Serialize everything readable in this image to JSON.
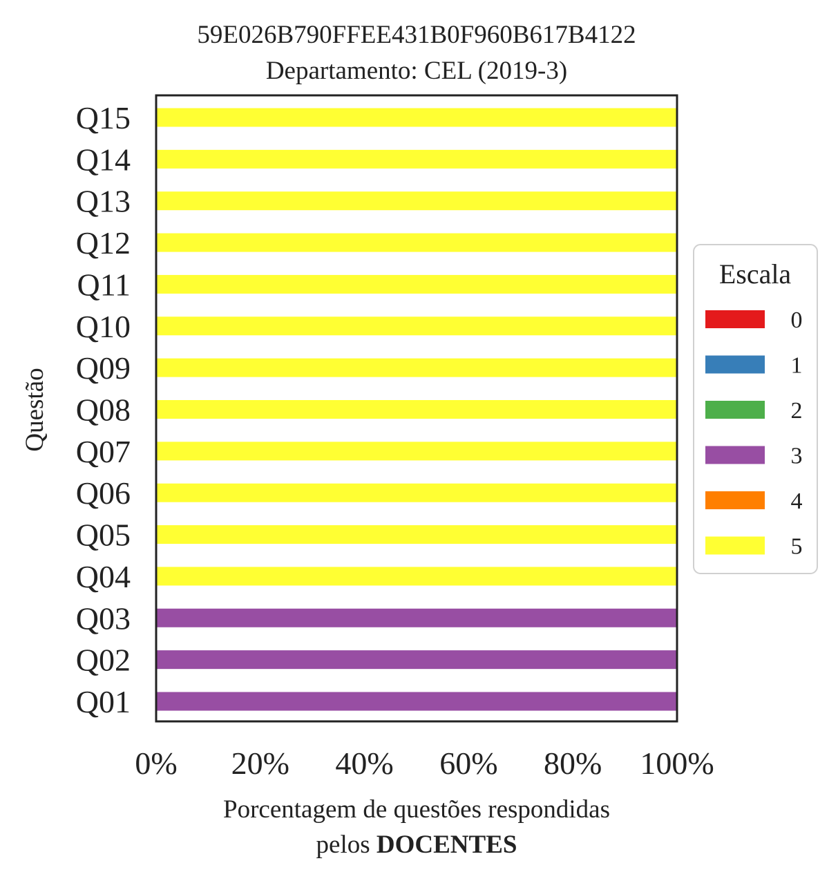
{
  "chart_data": {
    "type": "bar",
    "orientation": "horizontal",
    "stacked": true,
    "title": "59E026B790FFEE431B0F960B617B4122",
    "subtitle": "Departamento: CEL (2019-3)",
    "xlabel_line1": "Porcentagem de questões respondidas",
    "xlabel_line2_prefix": "pelos ",
    "xlabel_line2_bold": "DOCENTES",
    "ylabel": "Questão",
    "xlim": [
      0,
      100
    ],
    "xticks": [
      "0%",
      "20%",
      "40%",
      "60%",
      "80%",
      "100%"
    ],
    "xtick_values": [
      0,
      20,
      40,
      60,
      80,
      100
    ],
    "categories": [
      "Q01",
      "Q02",
      "Q03",
      "Q04",
      "Q05",
      "Q06",
      "Q07",
      "Q08",
      "Q09",
      "Q10",
      "Q11",
      "Q12",
      "Q13",
      "Q14",
      "Q15"
    ],
    "series": [
      {
        "name": "0",
        "color": "#e41a1c",
        "values": [
          0,
          0,
          0,
          0,
          0,
          0,
          0,
          0,
          0,
          0,
          0,
          0,
          0,
          0,
          0
        ]
      },
      {
        "name": "1",
        "color": "#377eb8",
        "values": [
          0,
          0,
          0,
          0,
          0,
          0,
          0,
          0,
          0,
          0,
          0,
          0,
          0,
          0,
          0
        ]
      },
      {
        "name": "2",
        "color": "#4daf4a",
        "values": [
          0,
          0,
          0,
          0,
          0,
          0,
          0,
          0,
          0,
          0,
          0,
          0,
          0,
          0,
          0
        ]
      },
      {
        "name": "3",
        "color": "#984ea3",
        "values": [
          100,
          100,
          100,
          0,
          0,
          0,
          0,
          0,
          0,
          0,
          0,
          0,
          0,
          0,
          0
        ]
      },
      {
        "name": "4",
        "color": "#ff7f00",
        "values": [
          0,
          0,
          0,
          0,
          0,
          0,
          0,
          0,
          0,
          0,
          0,
          0,
          0,
          0,
          0
        ]
      },
      {
        "name": "5",
        "color": "#ffff33",
        "values": [
          0,
          0,
          0,
          100,
          100,
          100,
          100,
          100,
          100,
          100,
          100,
          100,
          100,
          100,
          100
        ]
      }
    ],
    "legend": {
      "title": "Escala",
      "placement": "center-right, outside plot"
    },
    "grid": false
  }
}
